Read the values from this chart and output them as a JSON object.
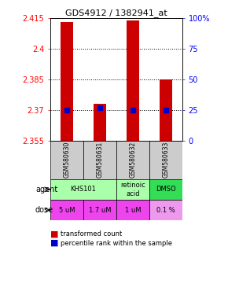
{
  "title": "GDS4912 / 1382941_at",
  "samples": [
    "GSM580630",
    "GSM580631",
    "GSM580632",
    "GSM580633"
  ],
  "bar_values": [
    2.413,
    2.373,
    2.414,
    2.385
  ],
  "percentile_values": [
    2.37,
    2.371,
    2.37,
    2.37
  ],
  "ylim": [
    2.355,
    2.415
  ],
  "yticks_left": [
    2.355,
    2.37,
    2.385,
    2.4,
    2.415
  ],
  "ytick_labels_left": [
    "2.355",
    "2.37",
    "2.385",
    "2.4",
    "2.415"
  ],
  "ytick_labels_right": [
    "0",
    "25",
    "50",
    "75",
    "100%"
  ],
  "yticks_right_pct": [
    0,
    25,
    50,
    75,
    100
  ],
  "bar_color": "#cc0000",
  "percentile_color": "#0000cc",
  "sample_bg_color": "#cccccc",
  "agent_groups": [
    {
      "cols": [
        0,
        1
      ],
      "label": "KHS101",
      "color": "#aaffaa"
    },
    {
      "cols": [
        2
      ],
      "label": "retinoic\nacid",
      "color": "#aaffaa"
    },
    {
      "cols": [
        3
      ],
      "label": "DMSO",
      "color": "#33dd55"
    }
  ],
  "dose_labels": [
    "5 uM",
    "1.7 uM",
    "1 uM",
    "0.1 %"
  ],
  "dose_colors": [
    "#ee44ee",
    "#ee44ee",
    "#ee44ee",
    "#ee99ee"
  ],
  "dose_text_colors": [
    "#000000",
    "#000000",
    "#000000",
    "#000000"
  ],
  "legend_red": "transformed count",
  "legend_blue": "percentile rank within the sample"
}
